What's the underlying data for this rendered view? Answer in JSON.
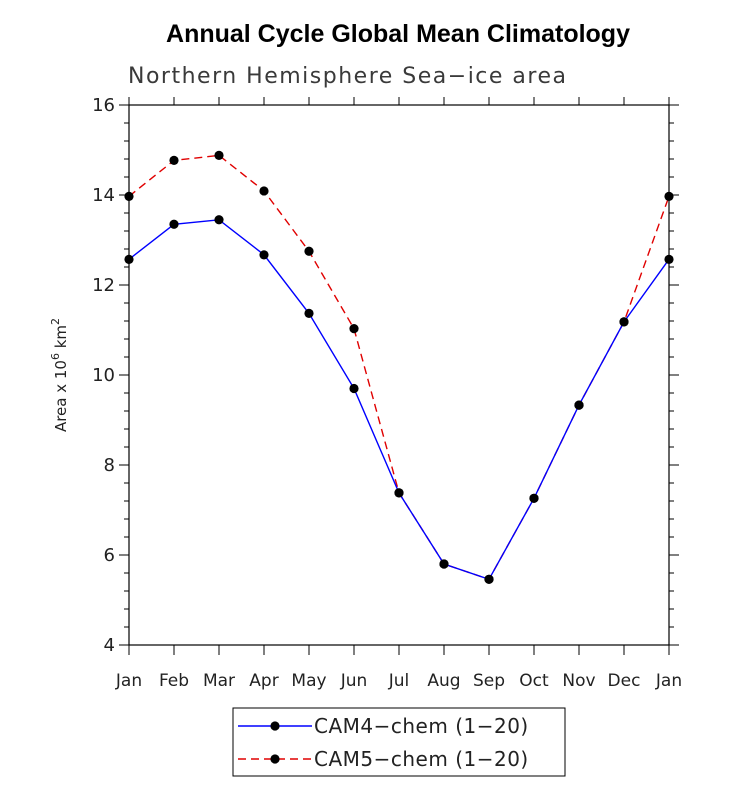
{
  "chart_data": {
    "type": "line",
    "title": "Annual Cycle Global Mean Climatology",
    "subtitle": "Northern Hemisphere Sea−ice area",
    "ylabel_prefix": "Area x 10",
    "ylabel_exp": "6",
    "ylabel_unit": " km",
    "ylabel_unit_exp": "2",
    "categories": [
      "Jan",
      "Feb",
      "Mar",
      "Apr",
      "May",
      "Jun",
      "Jul",
      "Aug",
      "Sep",
      "Oct",
      "Nov",
      "Dec",
      "Jan"
    ],
    "ylim": [
      4,
      16
    ],
    "yticks": [
      4,
      6,
      8,
      10,
      12,
      14,
      16
    ],
    "ytick_labels": [
      "4",
      "6",
      "8",
      "10",
      "12",
      "14",
      "16"
    ],
    "series": [
      {
        "name": "CAM4−chem (1−20)",
        "color": "#0000ff",
        "dash": "solid",
        "values": [
          12.57,
          13.35,
          13.45,
          12.67,
          11.37,
          9.7,
          7.38,
          5.8,
          5.46,
          7.26,
          9.33,
          11.18,
          12.57
        ]
      },
      {
        "name": "CAM5−chem (1−20)",
        "color": "#e00000",
        "dash": "dashed",
        "values": [
          13.97,
          14.77,
          14.88,
          14.09,
          12.75,
          11.03,
          7.38,
          5.8,
          5.46,
          7.26,
          9.33,
          11.18,
          13.97
        ]
      }
    ],
    "grid": false,
    "legend": "bottom-center"
  }
}
